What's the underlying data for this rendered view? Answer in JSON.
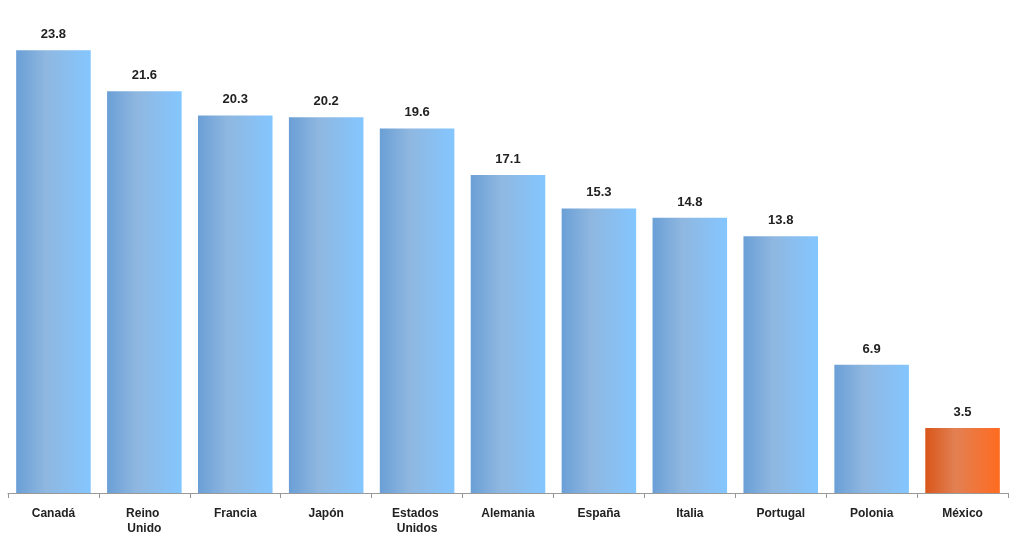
{
  "chart_data": {
    "type": "bar",
    "categories": [
      "Canadá",
      "Reino Unido",
      "Francia",
      "Japón",
      "Estados Unidos",
      "Alemania",
      "España",
      "Italia",
      "Portugal",
      "Polonia",
      "México"
    ],
    "values": [
      23.8,
      21.6,
      20.3,
      20.2,
      19.6,
      17.1,
      15.3,
      14.8,
      13.8,
      6.9,
      3.5
    ],
    "colors": [
      "#6a9fd6",
      "#6a9fd6",
      "#6a9fd6",
      "#6a9fd6",
      "#6a9fd6",
      "#6a9fd6",
      "#6a9fd6",
      "#6a9fd6",
      "#6a9fd6",
      "#6a9fd6",
      "#d9561a"
    ],
    "data_labels": true
  }
}
